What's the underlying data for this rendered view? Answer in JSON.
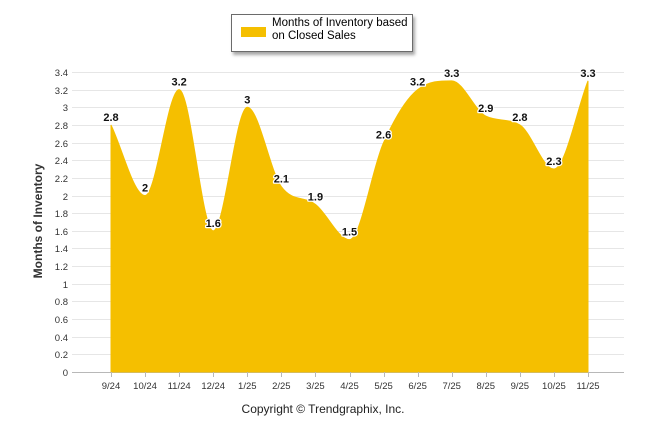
{
  "chart_data": {
    "type": "area",
    "title": "",
    "legend": {
      "label": "Months of Inventory based on Closed Sales",
      "position": "top-center"
    },
    "series": [
      {
        "name": "Months of Inventory based on Closed Sales",
        "color": "#f5bf00",
        "values": [
          2.8,
          2,
          3.2,
          1.6,
          3,
          2.1,
          1.9,
          1.5,
          2.6,
          3.2,
          3.3,
          2.9,
          2.8,
          2.3,
          3.3
        ]
      }
    ],
    "categories": [
      "9/24",
      "10/24",
      "11/24",
      "12/24",
      "1/25",
      "2/25",
      "3/25",
      "4/25",
      "5/25",
      "6/25",
      "7/25",
      "8/25",
      "9/25",
      "10/25",
      "11/25"
    ],
    "data_labels": [
      "2.8",
      "2",
      "3.2",
      "1.6",
      "3",
      "2.1",
      "1.9",
      "1.5",
      "2.6",
      "3.2",
      "3.3",
      "2.9",
      "2.8",
      "2.3",
      "3.3"
    ],
    "xlabel": "",
    "ylabel": "Months of Inventory",
    "ylim": [
      0,
      3.4
    ],
    "yticks": [
      "0",
      "0.2",
      "0.4",
      "0.6",
      "0.8",
      "1",
      "1.2",
      "1.4",
      "1.6",
      "1.8",
      "2",
      "2.2",
      "2.4",
      "2.6",
      "2.8",
      "3",
      "3.2",
      "3.4"
    ],
    "grid": true
  },
  "footer": {
    "copyright": "Copyright © Trendgraphix, Inc."
  }
}
